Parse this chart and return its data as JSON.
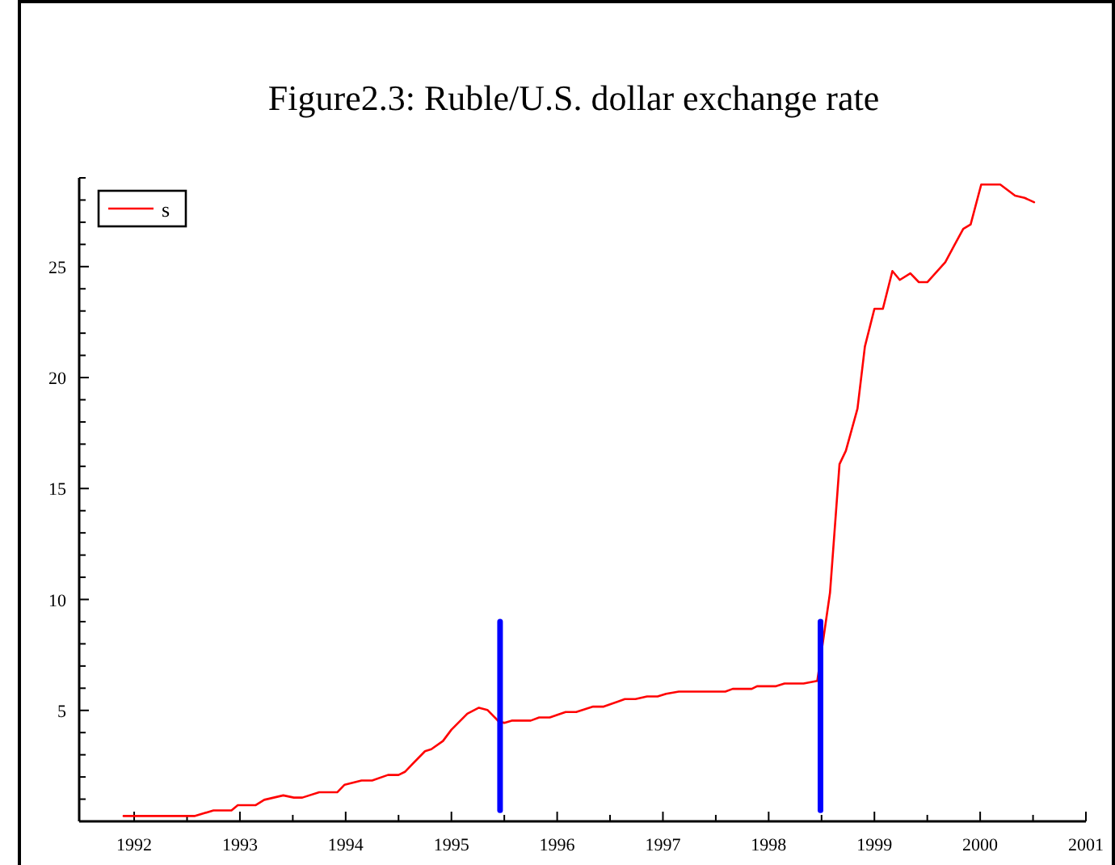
{
  "chart_data": {
    "type": "line",
    "title": "Figure2.3: Ruble/U.S. dollar exchange rate",
    "legend": "top left",
    "xlim": [
      1991.48,
      2001
    ],
    "xticks": [
      1992,
      {
        "value": 1992.5,
        "label": null
      },
      1993,
      {
        "value": 1993.5,
        "label": null
      },
      1994,
      {
        "value": 1994.5,
        "label": null
      },
      1995,
      {
        "value": 1995.5,
        "label": null
      },
      1996,
      {
        "value": 1996.5,
        "label": null
      },
      1997,
      {
        "value": 1997.5,
        "label": null
      },
      1998,
      {
        "value": 1998.5,
        "label": null
      },
      1999,
      {
        "value": 1999.5,
        "label": null
      },
      2000,
      {
        "value": 2000.5,
        "label": null
      },
      2001
    ],
    "ylim": [
      0,
      29
    ],
    "yticks": [
      {
        "value": 1,
        "label": null
      },
      {
        "value": 2,
        "label": null
      },
      {
        "value": 3,
        "label": null
      },
      {
        "value": 4,
        "label": null
      },
      5,
      {
        "value": 6,
        "label": null
      },
      {
        "value": 7,
        "label": null
      },
      {
        "value": 8,
        "label": null
      },
      {
        "value": 9,
        "label": null
      },
      10,
      {
        "value": 11,
        "label": null
      },
      {
        "value": 12,
        "label": null
      },
      {
        "value": 13,
        "label": null
      },
      {
        "value": 14,
        "label": null
      },
      15,
      {
        "value": 16,
        "label": null
      },
      {
        "value": 17,
        "label": null
      },
      {
        "value": 18,
        "label": null
      },
      {
        "value": 19,
        "label": null
      },
      20,
      {
        "value": 21,
        "label": null
      },
      {
        "value": 22,
        "label": null
      },
      {
        "value": 23,
        "label": null
      },
      {
        "value": 24,
        "label": null
      },
      25,
      {
        "value": 26,
        "label": null
      },
      {
        "value": 27,
        "label": null
      },
      {
        "value": 28,
        "label": null
      },
      {
        "value": 29,
        "label": null
      }
    ],
    "series": [
      {
        "name": "s",
        "color": "#ff0000",
        "x": [
          1991.9,
          1992.57,
          1992.75,
          1992.92,
          1992.98,
          1993.15,
          1993.23,
          1993.41,
          1993.51,
          1993.59,
          1993.75,
          1993.92,
          1993.99,
          1994.15,
          1994.25,
          1994.4,
          1994.5,
          1994.56,
          1994.75,
          1994.81,
          1994.92,
          1995.0,
          1995.15,
          1995.26,
          1995.34,
          1995.45,
          1995.5,
          1995.57,
          1995.75,
          1995.83,
          1995.93,
          1996.08,
          1996.18,
          1996.34,
          1996.44,
          1996.64,
          1996.74,
          1996.85,
          1996.95,
          1997.03,
          1997.15,
          1997.59,
          1997.66,
          1997.84,
          1997.89,
          1998.07,
          1998.15,
          1998.33,
          1998.46,
          1998.58,
          1998.67,
          1998.73,
          1998.84,
          1998.91,
          1999.0,
          1999.08,
          1999.17,
          1999.24,
          1999.34,
          1999.42,
          1999.5,
          1999.67,
          1999.76,
          1999.84,
          1999.91,
          2000.01,
          2000.19,
          2000.33,
          2000.42,
          2000.51
        ],
        "values": [
          0.24,
          0.24,
          0.49,
          0.49,
          0.73,
          0.73,
          0.97,
          1.17,
          1.07,
          1.07,
          1.31,
          1.31,
          1.65,
          1.84,
          1.84,
          2.09,
          2.09,
          2.23,
          3.16,
          3.25,
          3.62,
          4.13,
          4.85,
          5.12,
          5.02,
          4.49,
          4.44,
          4.54,
          4.54,
          4.68,
          4.68,
          4.93,
          4.93,
          5.17,
          5.17,
          5.51,
          5.51,
          5.63,
          5.63,
          5.75,
          5.85,
          5.85,
          5.97,
          5.97,
          6.09,
          6.09,
          6.21,
          6.21,
          6.33,
          10.3,
          16.1,
          16.7,
          18.6,
          21.4,
          23.1,
          23.1,
          24.8,
          24.4,
          24.7,
          24.3,
          24.3,
          25.2,
          26.0,
          26.7,
          26.9,
          28.7,
          28.7,
          28.2,
          28.1,
          27.9
        ]
      },
      {
        "color": "#0000ff",
        "x": [
          1995.46,
          1995.46
        ],
        "values": [
          0.5,
          9
        ]
      },
      {
        "color": "#0000ff",
        "x": [
          1998.49,
          1998.49
        ],
        "values": [
          0.5,
          9
        ]
      }
    ]
  }
}
